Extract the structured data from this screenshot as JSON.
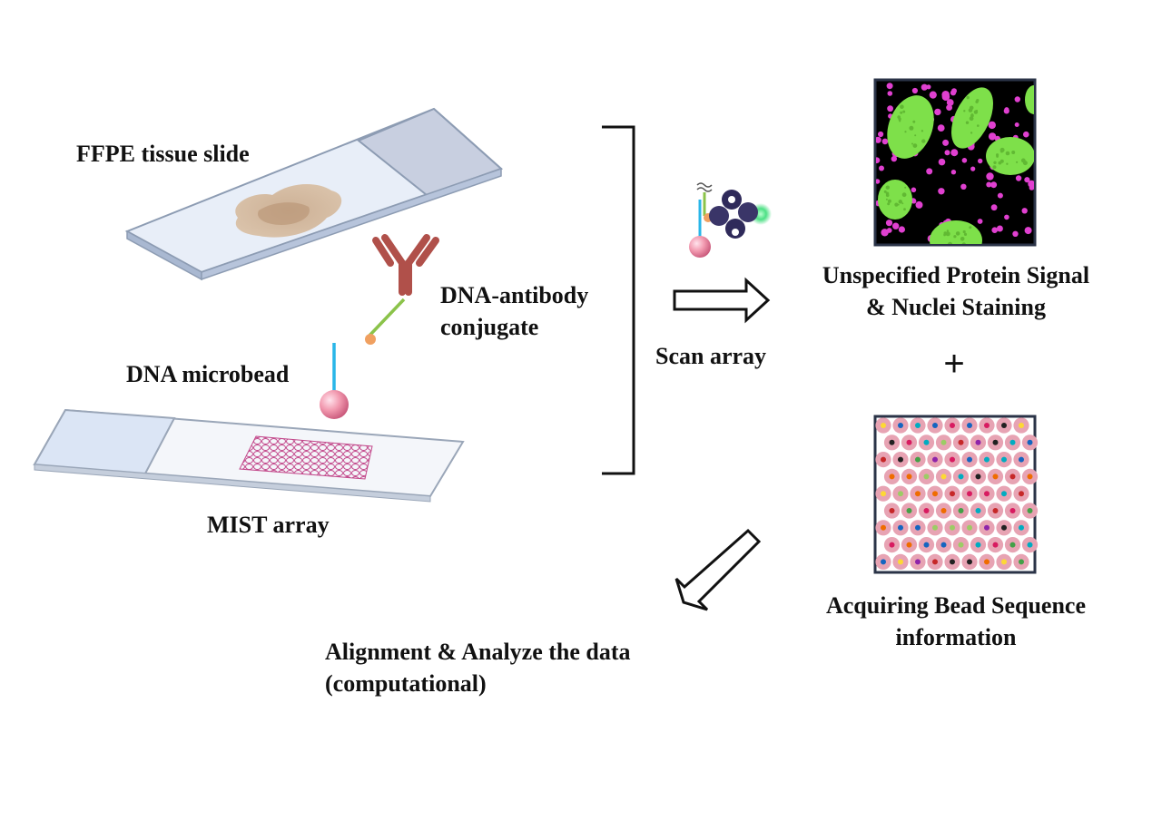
{
  "labels": {
    "ffpe": "FFPE tissue slide",
    "conjugate_l1": "DNA-antibody",
    "conjugate_l2": "conjugate",
    "microbead": "DNA microbead",
    "mist": "MIST array",
    "scan": "Scan array",
    "protein_l1": "Unspecified Protein Signal",
    "protein_l2": "& Nuclei Staining",
    "plus": "+",
    "bead_seq_l1": "Acquiring Bead Sequence",
    "bead_seq_l2": "information",
    "align_l1": "Alignment & Analyze the data",
    "align_l2": "(computational)"
  },
  "icons": [
    "ffpe-slide-icon",
    "antibody-icon",
    "dna-microbead-icon",
    "mist-array-slide-icon",
    "bracket-icon",
    "scan-arrow-icon",
    "bead-binding-icon",
    "fluorescence-image-icon",
    "bead-sequence-image-icon",
    "return-arrow-icon"
  ],
  "colors": {
    "antibody": "#b0504a",
    "dna_green": "#8bc34a",
    "dna_blue": "#29b6e8",
    "bead_pink": "#f29ab0",
    "nuclei": "#7ee04a",
    "protein_dots": "#e040d0",
    "array_bead": "#e7a3b3"
  }
}
